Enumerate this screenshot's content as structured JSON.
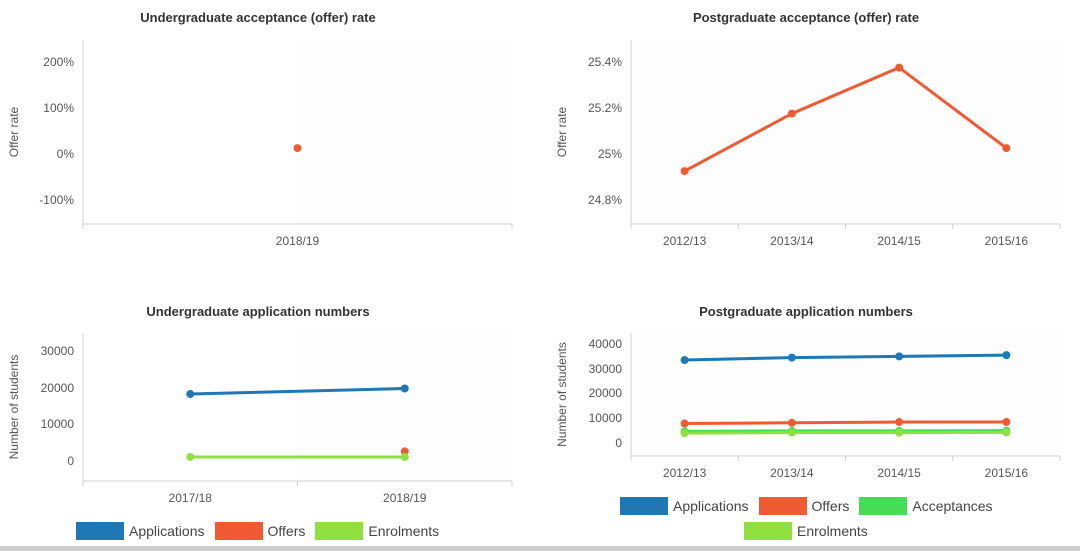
{
  "colors": {
    "applications": "#1f77b4",
    "offers": "#f05a32",
    "acceptances": "#44dd55",
    "enrolments": "#90e040"
  },
  "chart_data": [
    {
      "id": "ug_rate",
      "type": "scatter",
      "title": "Undergraduate acceptance (offer) rate",
      "xlabel": "",
      "ylabel": "Offer rate",
      "categories": [
        "2018/19"
      ],
      "yticks": [
        "200%",
        "100%",
        "0%",
        "-100%"
      ],
      "ylim": [
        -150,
        250
      ],
      "series": [
        {
          "name": "Offers",
          "color_key": "offers",
          "values": [
            15
          ]
        }
      ]
    },
    {
      "id": "pg_rate",
      "type": "line",
      "title": "Postgraduate acceptance (offer) rate",
      "xlabel": "",
      "ylabel": "Offer rate",
      "categories": [
        "2012/13",
        "2013/14",
        "2014/15",
        "2015/16"
      ],
      "yticks": [
        "25.4%",
        "25.2%",
        "25%",
        "24.8%"
      ],
      "ylim": [
        24.7,
        25.5
      ],
      "series": [
        {
          "name": "Offers",
          "color_key": "offers",
          "values": [
            24.93,
            25.18,
            25.38,
            25.03
          ]
        }
      ]
    },
    {
      "id": "ug_apps",
      "type": "line",
      "title": "Undergraduate application numbers",
      "xlabel": "",
      "ylabel": "Number of students",
      "categories": [
        "2017/18",
        "2018/19"
      ],
      "yticks": [
        "30000",
        "20000",
        "10000",
        "0"
      ],
      "ylim": [
        -5000,
        35000
      ],
      "series": [
        {
          "name": "Applications",
          "color_key": "applications",
          "values": [
            18500,
            20000
          ]
        },
        {
          "name": "Offers",
          "color_key": "offers",
          "values": [
            null,
            3000
          ]
        },
        {
          "name": "Enrolments",
          "color_key": "enrolments",
          "values": [
            1500,
            1500
          ]
        }
      ],
      "legend": [
        "Applications",
        "Offers",
        "Enrolments"
      ]
    },
    {
      "id": "pg_apps",
      "type": "line",
      "title": "Postgraduate application numbers",
      "xlabel": "",
      "ylabel": "Number of students",
      "categories": [
        "2012/13",
        "2013/14",
        "2014/15",
        "2015/16"
      ],
      "yticks": [
        "40000",
        "30000",
        "20000",
        "10000",
        "0"
      ],
      "ylim": [
        -5000,
        45000
      ],
      "series": [
        {
          "name": "Applications",
          "color_key": "applications",
          "values": [
            34000,
            35000,
            35500,
            36000
          ]
        },
        {
          "name": "Offers",
          "color_key": "offers",
          "values": [
            8200,
            8500,
            8800,
            8800
          ]
        },
        {
          "name": "Acceptances",
          "color_key": "acceptances",
          "values": [
            5000,
            5200,
            5200,
            5300
          ]
        },
        {
          "name": "Enrolments",
          "color_key": "enrolments",
          "values": [
            4300,
            4500,
            4500,
            4600
          ]
        }
      ],
      "legend": [
        "Applications",
        "Offers",
        "Acceptances",
        "Enrolments"
      ]
    }
  ]
}
